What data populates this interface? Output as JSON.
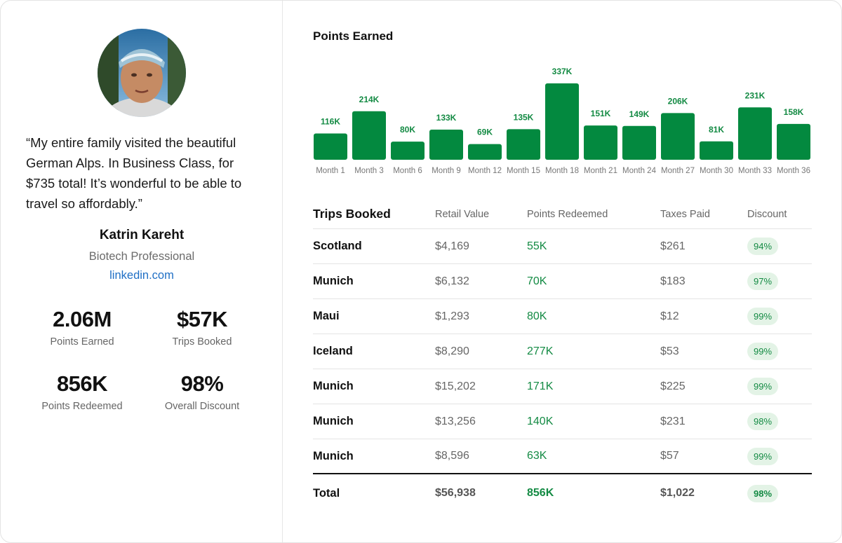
{
  "profile": {
    "quote": "“My entire family visited the beautiful German Alps. In Business Class, for $735 total! It’s wonderful to be able to travel so affordably.”",
    "name": "Katrin Kareht",
    "role": "Biotech Professional",
    "link": "linkedin.com"
  },
  "stats": [
    {
      "value": "2.06M",
      "label": "Points Earned"
    },
    {
      "value": "$57K",
      "label": "Trips Booked"
    },
    {
      "value": "856K",
      "label": "Points Redeemed"
    },
    {
      "value": "98%",
      "label": "Overall Discount"
    }
  ],
  "chart_title": "Points Earned",
  "chart_data": {
    "type": "bar",
    "title": "Points Earned",
    "categories": [
      "Month 1",
      "Month 3",
      "Month 6",
      "Month 9",
      "Month 12",
      "Month 15",
      "Month 18",
      "Month 21",
      "Month 24",
      "Month 27",
      "Month 30",
      "Month 33",
      "Month 36"
    ],
    "values": [
      116,
      214,
      80,
      133,
      69,
      135,
      337,
      151,
      149,
      206,
      81,
      231,
      158
    ],
    "data_labels": [
      "116K",
      "214K",
      "80K",
      "133K",
      "69K",
      "135K",
      "337K",
      "151K",
      "149K",
      "206K",
      "81K",
      "231K",
      "158K"
    ],
    "bar_color": "#03893f",
    "label_color": "#138a43",
    "grid": false
  },
  "table": {
    "headers": [
      "Trips Booked",
      "Retail Value",
      "Points Redeemed",
      "Taxes Paid",
      "Discount"
    ],
    "rows": [
      {
        "dest": "Scotland",
        "retail": "$4,169",
        "points": "55K",
        "taxes": "$261",
        "discount": "94%"
      },
      {
        "dest": "Munich",
        "retail": "$6,132",
        "points": "70K",
        "taxes": "$183",
        "discount": "97%"
      },
      {
        "dest": "Maui",
        "retail": "$1,293",
        "points": "80K",
        "taxes": "$12",
        "discount": "99%"
      },
      {
        "dest": "Iceland",
        "retail": "$8,290",
        "points": "277K",
        "taxes": "$53",
        "discount": "99%"
      },
      {
        "dest": "Munich",
        "retail": "$15,202",
        "points": "171K",
        "taxes": "$225",
        "discount": "99%"
      },
      {
        "dest": "Munich",
        "retail": "$13,256",
        "points": "140K",
        "taxes": "$231",
        "discount": "98%"
      },
      {
        "dest": "Munich",
        "retail": "$8,596",
        "points": "63K",
        "taxes": "$57",
        "discount": "99%"
      }
    ],
    "total": {
      "dest": "Total",
      "retail": "$56,938",
      "points": "856K",
      "taxes": "$1,022",
      "discount": "98%"
    }
  },
  "colors": {
    "accent": "#03893f",
    "link": "#1f6fc5",
    "badge_bg": "#e3f3e6"
  }
}
